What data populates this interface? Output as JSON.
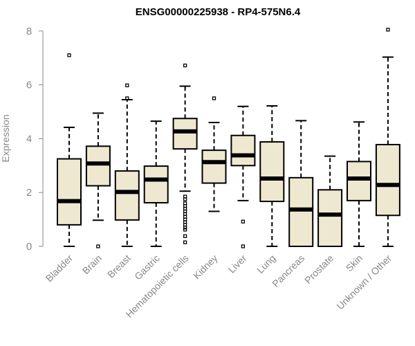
{
  "chart_data": {
    "type": "boxplot",
    "title": "ENSG00000225938 - RP4-575N6.4",
    "xlabel": "",
    "ylabel": "Expression",
    "ylim": [
      0,
      8
    ],
    "yticks": [
      "0",
      "2",
      "4",
      "6",
      "8"
    ],
    "box_fill": "#efe8d0",
    "categories": [
      "Bladder",
      "Brain",
      "Breast",
      "Gastric",
      "Hematopoietic cells",
      "Kidney",
      "Liver",
      "Lung",
      "Pancreas",
      "Prostate",
      "Skin",
      "Unknown / Other"
    ],
    "boxes": [
      {
        "name": "Bladder",
        "min": 0.0,
        "q1": 0.8,
        "median": 1.68,
        "q3": 3.25,
        "max": 4.42,
        "outliers": [
          7.1
        ]
      },
      {
        "name": "Brain",
        "min": 0.97,
        "q1": 2.25,
        "median": 3.08,
        "q3": 3.72,
        "max": 4.95,
        "outliers": [
          0.0
        ]
      },
      {
        "name": "Breast",
        "min": 0.0,
        "q1": 0.98,
        "median": 2.02,
        "q3": 2.8,
        "max": 5.45,
        "outliers": [
          5.5,
          5.98
        ]
      },
      {
        "name": "Gastric",
        "min": 0.0,
        "q1": 1.62,
        "median": 2.48,
        "q3": 2.98,
        "max": 4.65,
        "outliers": []
      },
      {
        "name": "Hematopoietic cells",
        "min": 2.05,
        "q1": 3.62,
        "median": 4.27,
        "q3": 4.75,
        "max": 5.95,
        "outliers": [
          6.72,
          1.85,
          1.75,
          1.6,
          1.5,
          1.4,
          1.3,
          1.2,
          1.1,
          1.0,
          0.9,
          0.8,
          0.7,
          0.62,
          0.38,
          0.15
        ]
      },
      {
        "name": "Kidney",
        "min": 1.3,
        "q1": 2.35,
        "median": 3.13,
        "q3": 3.57,
        "max": 4.6,
        "outliers": [
          5.5
        ]
      },
      {
        "name": "Liver",
        "min": 1.7,
        "q1": 3.0,
        "median": 3.38,
        "q3": 4.12,
        "max": 5.2,
        "outliers": [
          0.92,
          0.0
        ]
      },
      {
        "name": "Lung",
        "min": 0.0,
        "q1": 1.67,
        "median": 2.52,
        "q3": 3.88,
        "max": 5.22,
        "outliers": []
      },
      {
        "name": "Pancreas",
        "min": 0.0,
        "q1": 0.0,
        "median": 1.37,
        "q3": 2.55,
        "max": 4.67,
        "outliers": []
      },
      {
        "name": "Prostate",
        "min": 0.0,
        "q1": 0.0,
        "median": 1.18,
        "q3": 2.1,
        "max": 3.35,
        "outliers": []
      },
      {
        "name": "Skin",
        "min": 0.0,
        "q1": 1.7,
        "median": 2.52,
        "q3": 3.15,
        "max": 4.62,
        "outliers": []
      },
      {
        "name": "Unknown / Other",
        "min": 0.0,
        "q1": 1.15,
        "median": 2.28,
        "q3": 3.78,
        "max": 7.03,
        "outliers": [
          8.05
        ]
      }
    ]
  }
}
